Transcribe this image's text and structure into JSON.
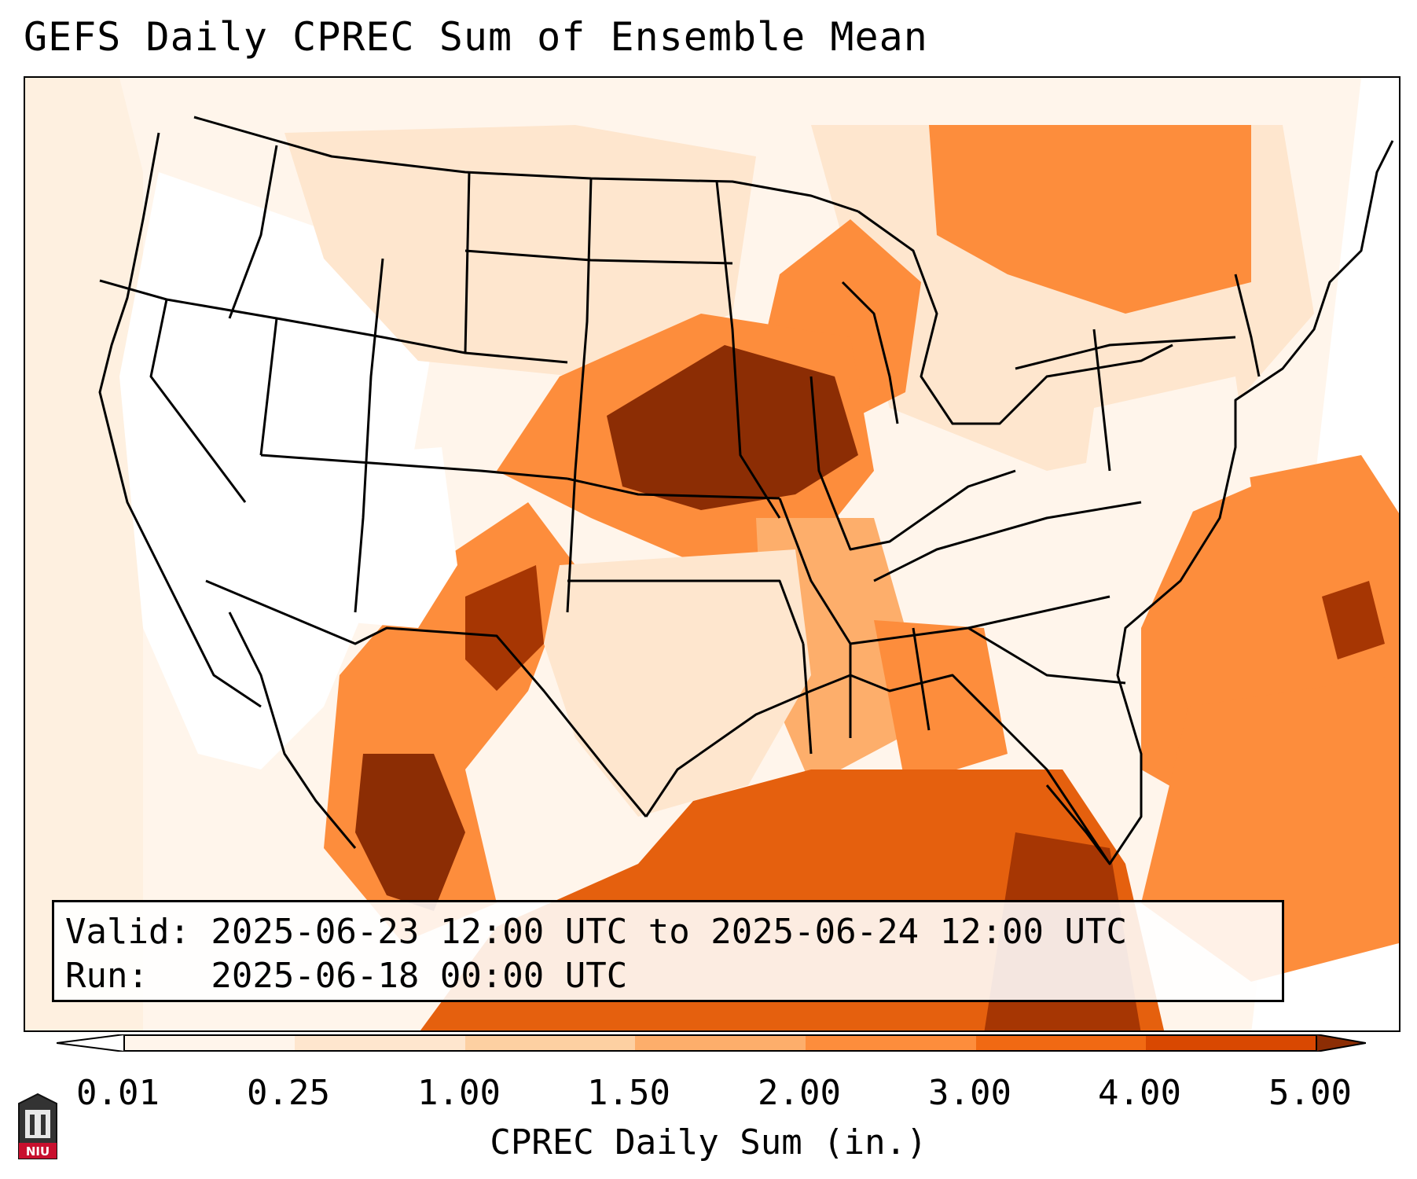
{
  "title": "GEFS Daily CPREC Sum of Ensemble Mean",
  "info": {
    "valid_line": "Valid: 2025-06-23 12:00 UTC to 2025-06-24 12:00 UTC",
    "run_line": "Run:   2025-06-18 00:00 UTC"
  },
  "colorbar": {
    "label": "CPREC Daily Sum (in.)",
    "ticks": [
      "0.01",
      "0.25",
      "1.00",
      "1.50",
      "2.00",
      "3.00",
      "4.00",
      "5.00"
    ],
    "colors": [
      "#fff5eb",
      "#fee6ce",
      "#fdd0a2",
      "#fdae6b",
      "#fd8d3c",
      "#f16913",
      "#d94801",
      "#8c2d04"
    ]
  },
  "logo": {
    "text": "NIU",
    "color": "#c8102e"
  }
}
